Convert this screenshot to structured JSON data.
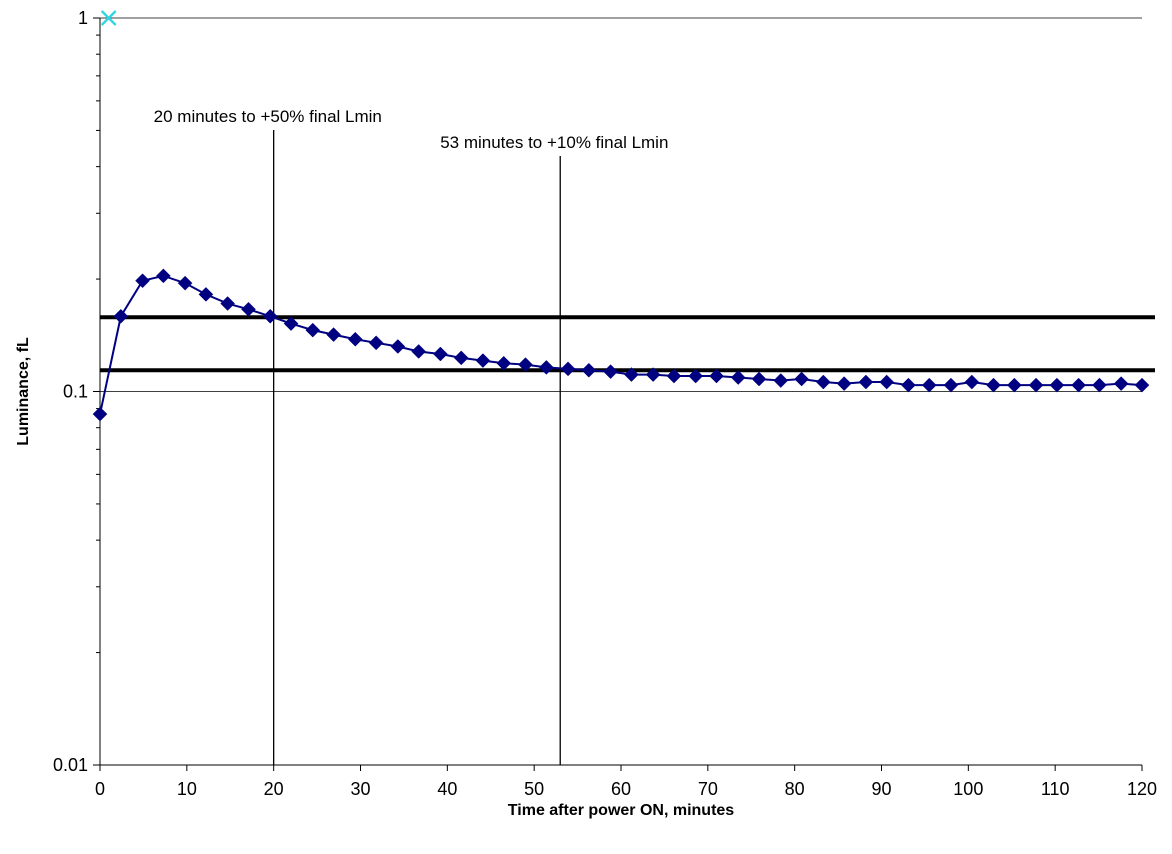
{
  "chart_data": {
    "type": "scatter",
    "xlabel": "Time after power ON, minutes",
    "ylabel": "Luminance, fL",
    "y_scale": "log",
    "xlim": [
      0,
      120
    ],
    "ylim": [
      0.01,
      1
    ],
    "x_ticks": [
      "0",
      "10",
      "20",
      "30",
      "40",
      "50",
      "60",
      "70",
      "80",
      "90",
      "100",
      "110",
      "120"
    ],
    "y_ticks": [
      "0.01",
      "0.1",
      "1"
    ],
    "grid": "major horizontal",
    "colors": {
      "series": "#000080",
      "cross_marker": "#33d6e0",
      "reference_lines": "#000000"
    },
    "series": [
      {
        "x": [
          0,
          2.4,
          4.9,
          7.3,
          9.8,
          12.2,
          14.7,
          17.1,
          19.6,
          22.0,
          24.5,
          26.9,
          29.4,
          31.8,
          34.3,
          36.7,
          39.2,
          41.6,
          44.1,
          46.5,
          49.0,
          51.4,
          53.9,
          56.3,
          58.8,
          61.2,
          63.7,
          66.1,
          68.6,
          71.0,
          73.5,
          75.9,
          78.4,
          80.8,
          83.3,
          85.7,
          88.2,
          90.6,
          93.1,
          95.5,
          98.0,
          100.4,
          102.9,
          105.3,
          107.8,
          110.2,
          112.7,
          115.1,
          117.6,
          120.0
        ],
        "y": [
          0.087,
          0.159,
          0.198,
          0.204,
          0.195,
          0.182,
          0.172,
          0.166,
          0.159,
          0.152,
          0.146,
          0.142,
          0.138,
          0.135,
          0.132,
          0.128,
          0.126,
          0.123,
          0.121,
          0.119,
          0.118,
          0.116,
          0.115,
          0.114,
          0.113,
          0.111,
          0.111,
          0.11,
          0.11,
          0.11,
          0.109,
          0.108,
          0.107,
          0.108,
          0.106,
          0.105,
          0.106,
          0.106,
          0.104,
          0.104,
          0.104,
          0.106,
          0.104,
          0.104,
          0.104,
          0.104,
          0.104,
          0.104,
          0.105,
          0.104
        ],
        "marker": "diamond"
      },
      {
        "x": [
          1
        ],
        "y": [
          1
        ],
        "marker": "x"
      }
    ],
    "horizontal_lines": [
      0.158,
      0.114
    ],
    "vertical_lines": [
      20,
      53
    ],
    "annotations": [
      {
        "text": "20 minutes to +50% final Lmin",
        "x": 20
      },
      {
        "text": "53 minutes to +10% final Lmin",
        "x": 53
      }
    ]
  }
}
